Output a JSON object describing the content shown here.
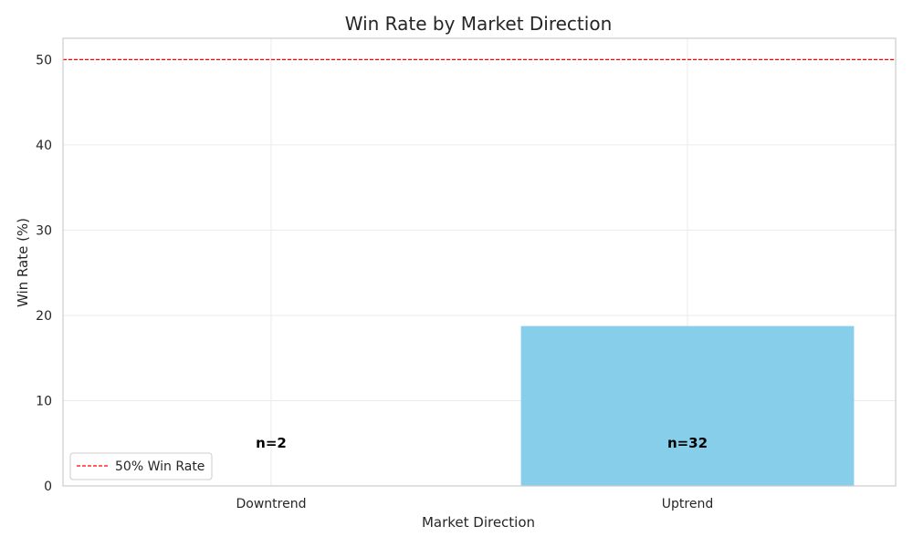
{
  "chart_data": {
    "type": "bar",
    "title": "Win Rate by Market Direction",
    "xlabel": "Market Direction",
    "ylabel": "Win Rate (%)",
    "categories": [
      "Downtrend",
      "Uptrend"
    ],
    "values": [
      0,
      18.75
    ],
    "annotations": [
      "n=2",
      "n=32"
    ],
    "ylim": [
      0,
      52.5
    ],
    "yticks": [
      "0",
      "10",
      "20",
      "30",
      "40",
      "50"
    ],
    "reference_line": {
      "value": 50,
      "label": "50% Win Rate",
      "style": "dashed",
      "color": "#ff0000"
    },
    "bar_color": "#87ceeb",
    "grid": true,
    "legend": {
      "position": "lower-left",
      "entries": [
        "50% Win Rate"
      ]
    }
  }
}
